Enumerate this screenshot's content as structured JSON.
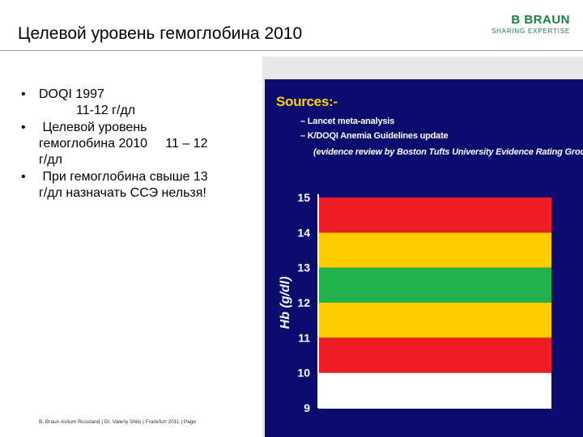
{
  "slide": {
    "title": "Целевой уровень гемоглобина 2010",
    "logo": {
      "name": "B BRAUN",
      "tagline": "SHARING EXPERTISE"
    },
    "bullets": [
      {
        "marker": "•",
        "lines": [
          "DOQI  1997",
          "11-12 г/дл"
        ]
      },
      {
        "marker": "•",
        "lines": [
          " Целевой уровень",
          "гемоглобина 2010     11 – 12",
          "г/дл"
        ]
      },
      {
        "marker": "•",
        "lines": [
          " При гемоглобина свыше 13",
          "г/дл назначать ССЭ нельзя!"
        ]
      }
    ],
    "footer": "B. Braun Avitum Russland  | Dr. Valeriy Shilo | Frankfurt 2011 | Page"
  },
  "sources": {
    "title": "Sources:-",
    "items": [
      "– Lancet meta-analysis",
      "– K/DOQI Anemia Guidelines update",
      "(evidence review by Boston Tufts University Evidence Rating Group)"
    ]
  },
  "chart_data": {
    "type": "bar",
    "ylabel": "Hb (g/dl)",
    "ylim": [
      9,
      15
    ],
    "yticks": [
      15,
      14,
      13,
      12,
      11,
      10,
      9
    ],
    "bands": [
      {
        "from": 9,
        "to": 10,
        "color": "#ffffff"
      },
      {
        "from": 10,
        "to": 11,
        "color": "#ee1c25"
      },
      {
        "from": 11,
        "to": 12,
        "color": "#ffcc00"
      },
      {
        "from": 12,
        "to": 13,
        "color": "#22b24c"
      },
      {
        "from": 13,
        "to": 14,
        "color": "#ffcc00"
      },
      {
        "from": 14,
        "to": 15,
        "color": "#ee1c25"
      }
    ],
    "colors": {
      "background": "#0b0c6e",
      "text": "#ffffff",
      "title": "#ffd200"
    }
  }
}
